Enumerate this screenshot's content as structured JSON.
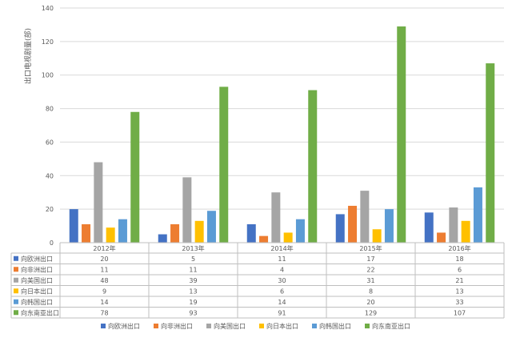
{
  "chart_data": {
    "type": "bar",
    "title": "",
    "xlabel": "",
    "ylabel": "出口电视剧量(部)",
    "ylim": [
      0,
      140
    ],
    "yticks": [
      0,
      20,
      40,
      60,
      80,
      100,
      120,
      140
    ],
    "grid": "horizontal",
    "legend_position": "bottom",
    "data_table": true,
    "categories": [
      "2012年",
      "2013年",
      "2014年",
      "2015年",
      "2016年"
    ],
    "series": [
      {
        "name": "向欧洲出口",
        "color": "#4472c4",
        "values": [
          20,
          5,
          11,
          17,
          18
        ]
      },
      {
        "name": "向非洲出口",
        "color": "#ed7d31",
        "values": [
          11,
          11,
          4,
          22,
          6
        ]
      },
      {
        "name": "向美国出口",
        "color": "#a5a5a5",
        "values": [
          48,
          39,
          30,
          31,
          21
        ]
      },
      {
        "name": "向日本出口",
        "color": "#ffc000",
        "values": [
          9,
          13,
          6,
          8,
          13
        ]
      },
      {
        "name": "向韩国出口",
        "color": "#5b9bd5",
        "values": [
          14,
          19,
          14,
          20,
          33
        ]
      },
      {
        "name": "向东南亚出口",
        "color": "#70ad47",
        "values": [
          78,
          93,
          91,
          129,
          107
        ]
      }
    ]
  }
}
